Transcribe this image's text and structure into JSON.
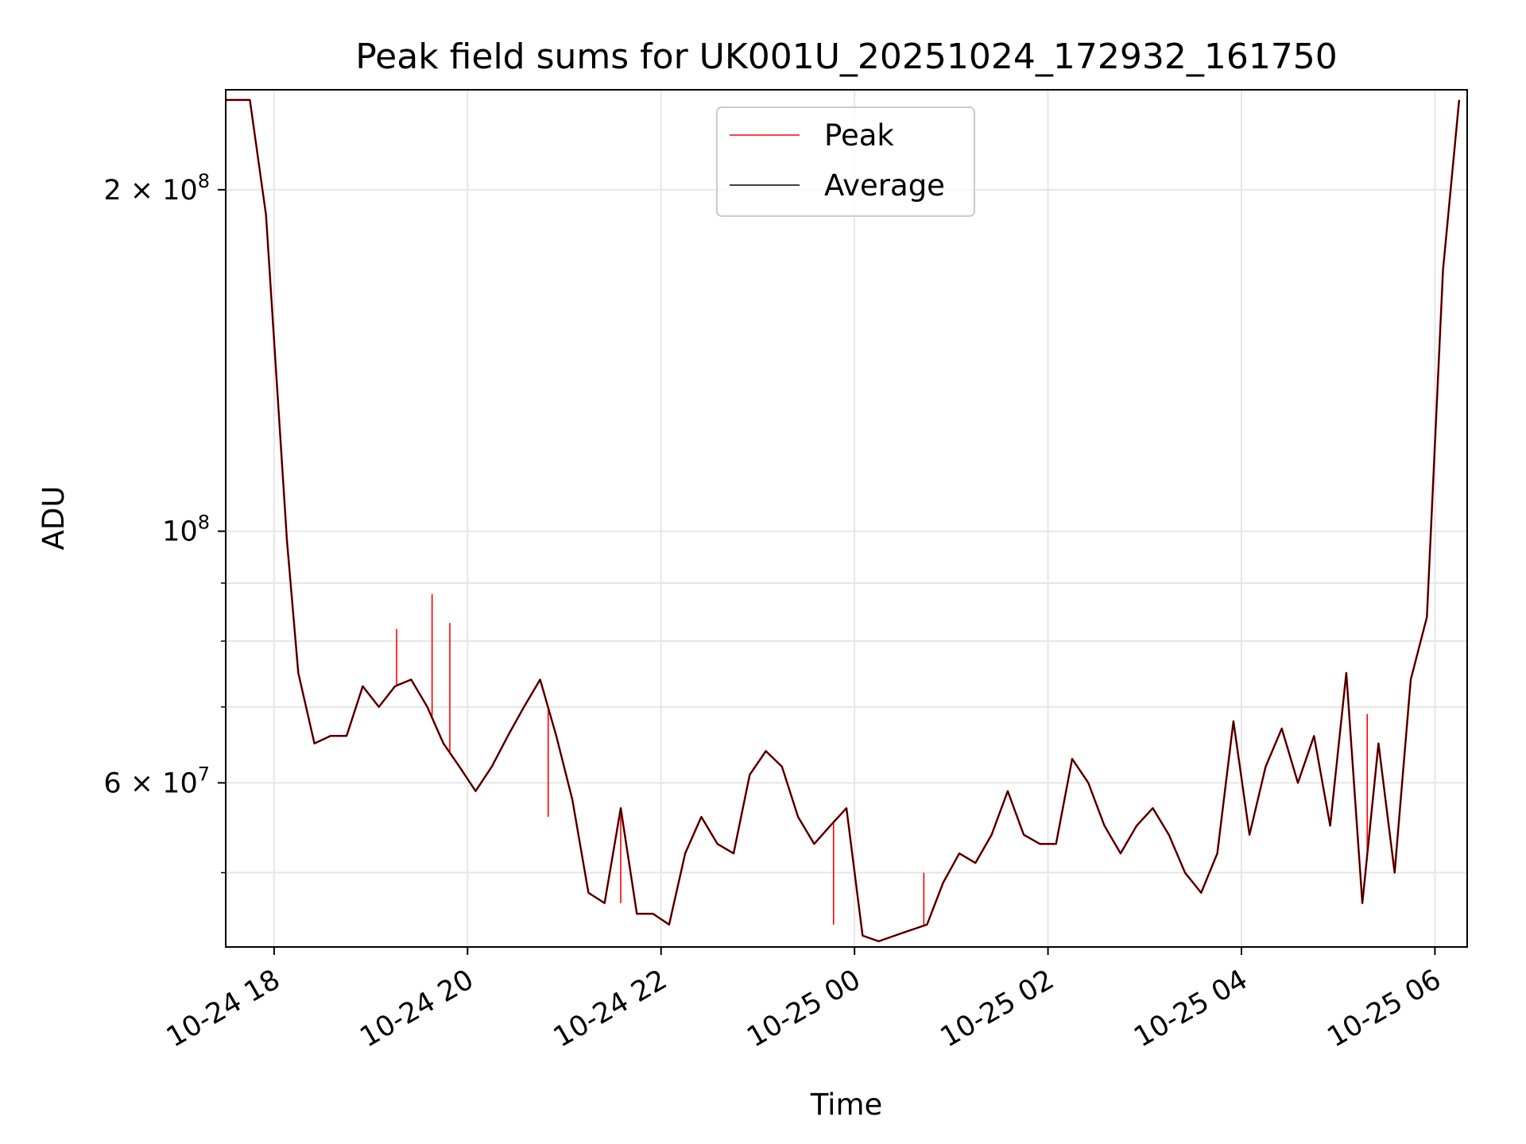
{
  "chart_data": {
    "type": "line",
    "title": "Peak field sums for UK001U_20251024_172932_161750",
    "xlabel": "Time",
    "ylabel": "ADU",
    "y_scale": "log",
    "grid": true,
    "legend_position": "upper center",
    "xlim": [
      "2025-10-24 17:30",
      "2025-10-25 06:20"
    ],
    "ylim": [
      43000000,
      245000000
    ],
    "x_ticks": [
      {
        "value": "2025-10-24 18:00",
        "label": "10-24 18"
      },
      {
        "value": "2025-10-24 20:00",
        "label": "10-24 20"
      },
      {
        "value": "2025-10-24 22:00",
        "label": "10-24 22"
      },
      {
        "value": "2025-10-25 00:00",
        "label": "10-25 00"
      },
      {
        "value": "2025-10-25 02:00",
        "label": "10-25 02"
      },
      {
        "value": "2025-10-25 04:00",
        "label": "10-25 04"
      },
      {
        "value": "2025-10-25 06:00",
        "label": "10-25 06"
      }
    ],
    "y_major_ticks": [
      {
        "value": 60000000,
        "mantissa": "6",
        "base": "10",
        "exp": "7"
      },
      {
        "value": 100000000,
        "mantissa": "",
        "base": "10",
        "exp": "8"
      },
      {
        "value": 200000000,
        "mantissa": "2",
        "base": "10",
        "exp": "8"
      }
    ],
    "y_minor_ticks": [
      50000000,
      70000000,
      80000000,
      90000000
    ],
    "series": [
      {
        "name": "Peak",
        "color": "#ff0000",
        "x": [
          "2025-10-24 19:16",
          "2025-10-24 19:38",
          "2025-10-24 19:49",
          "2025-10-24 20:50",
          "2025-10-24 21:35",
          "2025-10-24 23:47",
          "2025-10-25 00:43",
          "2025-10-25 05:18"
        ],
        "y": [
          82000000,
          88000000,
          83000000,
          56000000,
          47000000,
          45000000,
          50000000,
          69000000
        ]
      },
      {
        "name": "Average",
        "color": "#000000",
        "x": [
          "2025-10-24 17:30",
          "2025-10-24 17:45",
          "2025-10-24 17:55",
          "2025-10-24 18:08",
          "2025-10-24 18:15",
          "2025-10-24 18:25",
          "2025-10-24 18:35",
          "2025-10-24 18:45",
          "2025-10-24 18:55",
          "2025-10-24 19:05",
          "2025-10-24 19:15",
          "2025-10-24 19:25",
          "2025-10-24 19:35",
          "2025-10-24 19:45",
          "2025-10-24 19:55",
          "2025-10-24 20:05",
          "2025-10-24 20:15",
          "2025-10-24 20:25",
          "2025-10-24 20:35",
          "2025-10-24 20:45",
          "2025-10-24 20:55",
          "2025-10-24 21:05",
          "2025-10-24 21:15",
          "2025-10-24 21:25",
          "2025-10-24 21:35",
          "2025-10-24 21:45",
          "2025-10-24 21:55",
          "2025-10-24 22:05",
          "2025-10-24 22:15",
          "2025-10-24 22:25",
          "2025-10-24 22:35",
          "2025-10-24 22:45",
          "2025-10-24 22:55",
          "2025-10-24 23:05",
          "2025-10-24 23:15",
          "2025-10-24 23:25",
          "2025-10-24 23:35",
          "2025-10-24 23:45",
          "2025-10-24 23:55",
          "2025-10-25 00:05",
          "2025-10-25 00:15",
          "2025-10-25 00:25",
          "2025-10-25 00:35",
          "2025-10-25 00:45",
          "2025-10-25 00:55",
          "2025-10-25 01:05",
          "2025-10-25 01:15",
          "2025-10-25 01:25",
          "2025-10-25 01:35",
          "2025-10-25 01:45",
          "2025-10-25 01:55",
          "2025-10-25 02:05",
          "2025-10-25 02:15",
          "2025-10-25 02:25",
          "2025-10-25 02:35",
          "2025-10-25 02:45",
          "2025-10-25 02:55",
          "2025-10-25 03:05",
          "2025-10-25 03:15",
          "2025-10-25 03:25",
          "2025-10-25 03:35",
          "2025-10-25 03:45",
          "2025-10-25 03:55",
          "2025-10-25 04:05",
          "2025-10-25 04:15",
          "2025-10-25 04:25",
          "2025-10-25 04:35",
          "2025-10-25 04:45",
          "2025-10-25 04:55",
          "2025-10-25 05:05",
          "2025-10-25 05:15",
          "2025-10-25 05:25",
          "2025-10-25 05:35",
          "2025-10-25 05:45",
          "2025-10-25 05:55",
          "2025-10-25 06:05",
          "2025-10-25 06:15"
        ],
        "y": [
          240000000,
          240000000,
          190000000,
          98000000,
          75000000,
          65000000,
          66000000,
          66000000,
          73000000,
          70000000,
          73000000,
          74000000,
          70000000,
          65000000,
          62000000,
          59000000,
          62000000,
          66000000,
          70000000,
          74000000,
          66000000,
          58000000,
          48000000,
          47000000,
          57000000,
          46000000,
          46000000,
          45000000,
          52000000,
          56000000,
          53000000,
          52000000,
          61000000,
          64000000,
          62000000,
          56000000,
          53000000,
          55000000,
          57000000,
          44000000,
          43500000,
          44000000,
          44500000,
          45000000,
          49000000,
          52000000,
          51000000,
          54000000,
          59000000,
          54000000,
          53000000,
          53000000,
          63000000,
          60000000,
          55000000,
          52000000,
          55000000,
          57000000,
          54000000,
          50000000,
          48000000,
          52000000,
          68000000,
          54000000,
          62000000,
          67000000,
          60000000,
          66000000,
          55000000,
          75000000,
          47000000,
          65000000,
          50000000,
          74000000,
          84000000,
          170000000,
          240000000
        ]
      }
    ]
  }
}
